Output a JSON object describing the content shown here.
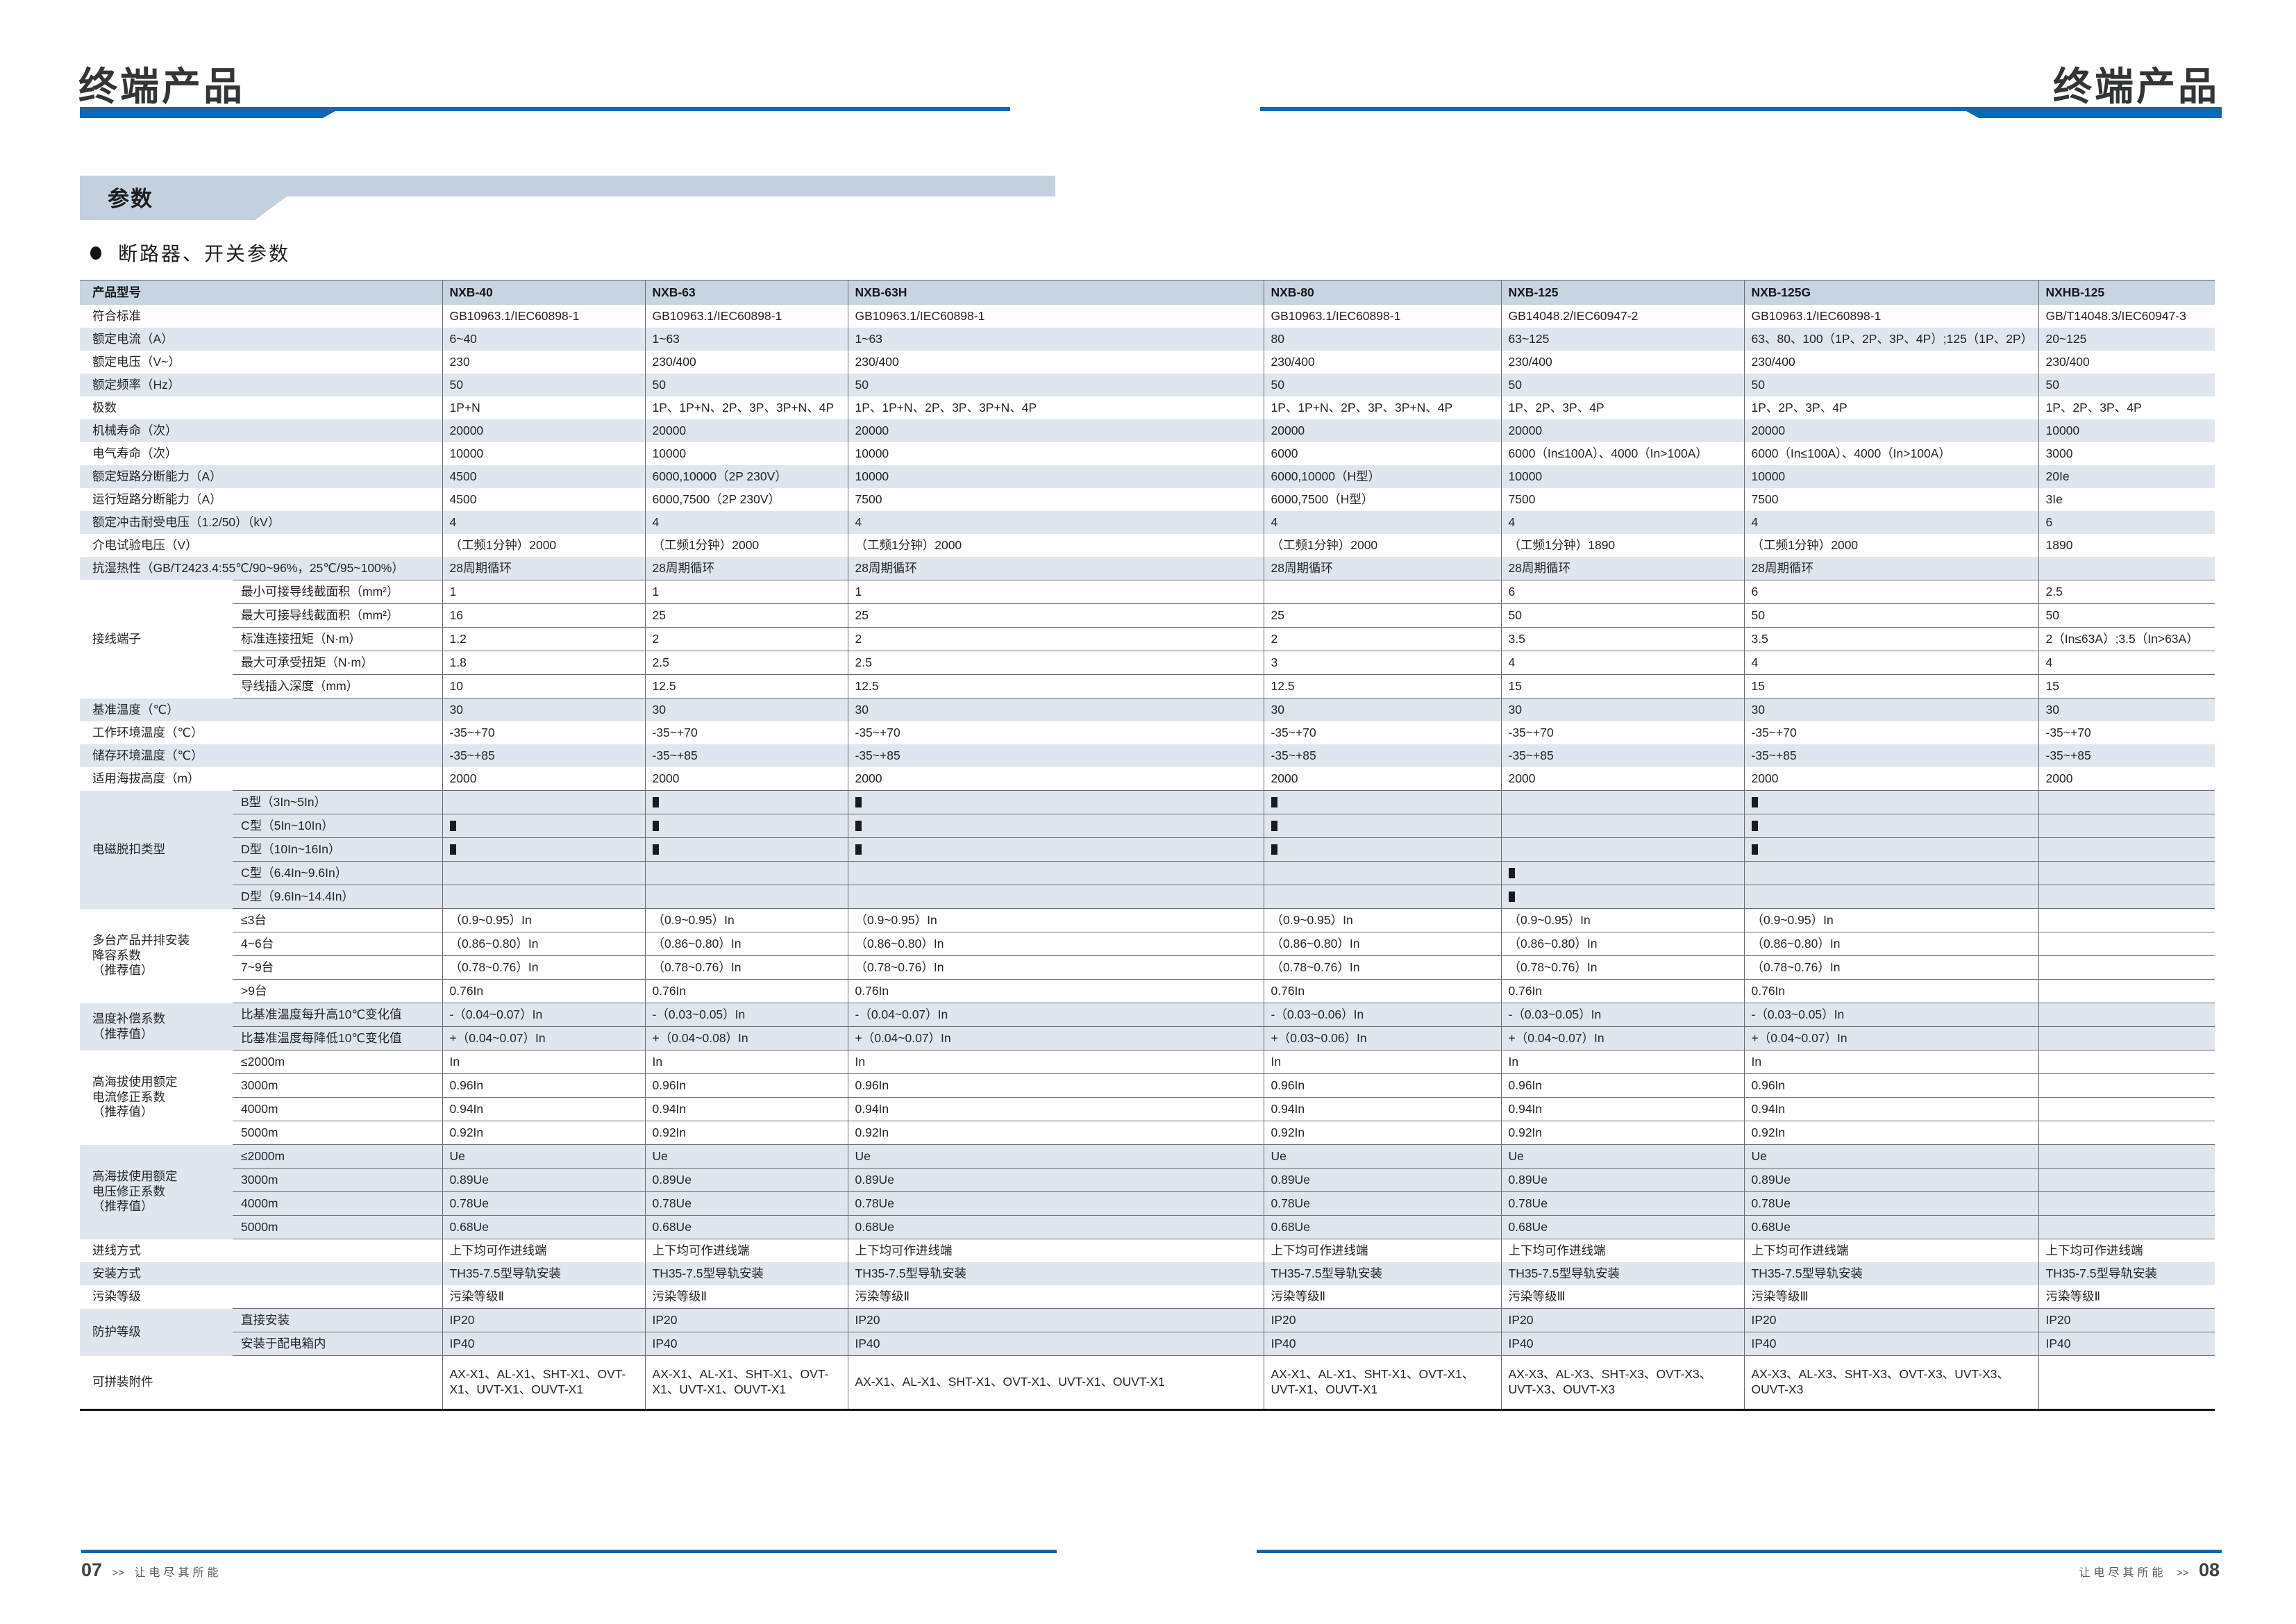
{
  "page": {
    "left_header_title": "终端产品",
    "right_header_title": "终端产品",
    "banner_label": "参数",
    "section_title": "断路器、开关参数",
    "footer_left": {
      "page_no": "07",
      "arrows": ">>",
      "slogan": "让电尽其所能"
    },
    "footer_right": {
      "page_no": "08",
      "arrows": ">>",
      "slogan": "让电尽其所能"
    },
    "colors": {
      "accent_blue": "#0e68b1",
      "banner_bg": "#c3d0de",
      "table_header_bg": "#c7d4e2",
      "shaded_row_bg": "#dfe6ee"
    }
  },
  "table": {
    "header": [
      "产品型号",
      "NXB-40",
      "NXB-63",
      "NXB-63H",
      "NXB-80",
      "NXB-125",
      "NXB-125G",
      "NXHB-125"
    ],
    "rows": [
      {
        "label": "符合标准",
        "shade": "w",
        "values": [
          "GB10963.1/IEC60898-1",
          "GB10963.1/IEC60898-1",
          "GB10963.1/IEC60898-1",
          "GB10963.1/IEC60898-1",
          "GB14048.2/IEC60947-2",
          "GB10963.1/IEC60898-1",
          "GB/T14048.3/IEC60947-3"
        ]
      },
      {
        "label": "额定电流（A）",
        "shade": "g",
        "values": [
          "6~40",
          "1~63",
          "1~63",
          "80",
          "63~125",
          "63、80、100（1P、2P、3P、4P）;125（1P、2P）",
          "20~125"
        ]
      },
      {
        "label": "额定电压（V~）",
        "shade": "w",
        "values": [
          "230",
          "230/400",
          "230/400",
          "230/400",
          "230/400",
          "230/400",
          "230/400"
        ]
      },
      {
        "label": "额定频率（Hz）",
        "shade": "g",
        "values": [
          "50",
          "50",
          "50",
          "50",
          "50",
          "50",
          "50"
        ]
      },
      {
        "label": "极数",
        "shade": "w",
        "values": [
          "1P+N",
          "1P、1P+N、2P、3P、3P+N、4P",
          "1P、1P+N、2P、3P、3P+N、4P",
          "1P、1P+N、2P、3P、3P+N、4P",
          "1P、2P、3P、4P",
          "1P、2P、3P、4P",
          "1P、2P、3P、4P"
        ]
      },
      {
        "label": "机械寿命（次）",
        "shade": "g",
        "values": [
          "20000",
          "20000",
          "20000",
          "20000",
          "20000",
          "20000",
          "10000"
        ]
      },
      {
        "label": "电气寿命（次）",
        "shade": "w",
        "values": [
          "10000",
          "10000",
          "10000",
          "6000",
          "6000（In≤100A）、4000（In>100A）",
          "6000（In≤100A）、4000（In>100A）",
          "3000"
        ]
      },
      {
        "label": "额定短路分断能力（A）",
        "shade": "g",
        "values": [
          "4500",
          "6000,10000（2P 230V）",
          "10000",
          "6000,10000（H型）",
          "10000",
          "10000",
          "20Ie"
        ]
      },
      {
        "label": "运行短路分断能力（A）",
        "shade": "w",
        "values": [
          "4500",
          "6000,7500（2P 230V）",
          "7500",
          "6000,7500（H型）",
          "7500",
          "7500",
          "3Ie"
        ]
      },
      {
        "label": "额定冲击耐受电压（1.2/50）（kV）",
        "shade": "g",
        "values": [
          "4",
          "4",
          "4",
          "4",
          "4",
          "4",
          "6"
        ]
      },
      {
        "label": "介电试验电压（V）",
        "shade": "w",
        "values": [
          "（工频1分钟）2000",
          "（工频1分钟）2000",
          "（工频1分钟）2000",
          "（工频1分钟）2000",
          "（工频1分钟）1890",
          "（工频1分钟）2000",
          "1890"
        ]
      },
      {
        "label": "抗湿热性（GB/T2423.4:55℃/90~96%，25℃/95~100%）",
        "shade": "g",
        "values": [
          "28周期循环",
          "28周期循环",
          "28周期循环",
          "28周期循环",
          "28周期循环",
          "28周期循环",
          ""
        ]
      },
      {
        "group": "接线端子",
        "span": 5,
        "sub": "最小可接导线截面积（mm²）",
        "shade": "w",
        "sep": true,
        "values": [
          "1",
          "1",
          "1",
          "",
          "6",
          "6",
          "2.5"
        ]
      },
      {
        "sub": "最大可接导线截面积（mm²）",
        "shade": "w",
        "sep": true,
        "values": [
          "16",
          "25",
          "25",
          "25",
          "50",
          "50",
          "50"
        ]
      },
      {
        "sub": "标准连接扭矩（N·m）",
        "shade": "w",
        "sep": true,
        "values": [
          "1.2",
          "2",
          "2",
          "2",
          "3.5",
          "3.5",
          "2（In≤63A）;3.5（In>63A）"
        ]
      },
      {
        "sub": "最大可承受扭矩（N·m）",
        "shade": "w",
        "sep": true,
        "values": [
          "1.8",
          "2.5",
          "2.5",
          "3",
          "4",
          "4",
          "4"
        ]
      },
      {
        "sub": "导线插入深度（mm）",
        "shade": "w",
        "sep": true,
        "sepb": true,
        "values": [
          "10",
          "12.5",
          "12.5",
          "12.5",
          "15",
          "15",
          "15"
        ]
      },
      {
        "label": "基准温度（℃）",
        "shade": "g",
        "values": [
          "30",
          "30",
          "30",
          "30",
          "30",
          "30",
          "30"
        ]
      },
      {
        "label": "工作环境温度（℃）",
        "shade": "w",
        "values": [
          "-35~+70",
          "-35~+70",
          "-35~+70",
          "-35~+70",
          "-35~+70",
          "-35~+70",
          "-35~+70"
        ]
      },
      {
        "label": "储存环境温度（℃）",
        "shade": "g",
        "values": [
          "-35~+85",
          "-35~+85",
          "-35~+85",
          "-35~+85",
          "-35~+85",
          "-35~+85",
          "-35~+85"
        ]
      },
      {
        "label": "适用海拔高度（m）",
        "shade": "w",
        "values": [
          "2000",
          "2000",
          "2000",
          "2000",
          "2000",
          "2000",
          "2000"
        ]
      },
      {
        "group": "电磁脱扣类型",
        "span": 5,
        "sub": "B型（3In~5In）",
        "shade": "g",
        "sep": true,
        "values": [
          "",
          "■",
          "■",
          "■",
          "",
          "■",
          ""
        ]
      },
      {
        "sub": "C型（5In~10In）",
        "shade": "g",
        "sep": true,
        "values": [
          "■",
          "■",
          "■",
          "■",
          "",
          "■",
          ""
        ]
      },
      {
        "sub": "D型（10In~16In）",
        "shade": "g",
        "sep": true,
        "values": [
          "■",
          "■",
          "■",
          "■",
          "",
          "■",
          ""
        ]
      },
      {
        "sub": "C型（6.4In~9.6In）",
        "shade": "g",
        "sep": true,
        "values": [
          "",
          "",
          "",
          "",
          "■",
          "",
          ""
        ]
      },
      {
        "sub": "D型（9.6In~14.4In）",
        "shade": "g",
        "sep": true,
        "sepb": true,
        "values": [
          "",
          "",
          "",
          "",
          "■",
          "",
          ""
        ]
      },
      {
        "group": "多台产品并排安装\n降容系数\n（推荐值）",
        "span": 4,
        "sub": "≤3台",
        "shade": "w",
        "sep": true,
        "values": [
          "（0.9~0.95）In",
          "（0.9~0.95）In",
          "（0.9~0.95）In",
          "（0.9~0.95）In",
          "（0.9~0.95）In",
          "（0.9~0.95）In",
          ""
        ]
      },
      {
        "sub": "4~6台",
        "shade": "w",
        "sep": true,
        "values": [
          "（0.86~0.80）In",
          "（0.86~0.80）In",
          "（0.86~0.80）In",
          "（0.86~0.80）In",
          "（0.86~0.80）In",
          "（0.86~0.80）In",
          ""
        ]
      },
      {
        "sub": "7~9台",
        "shade": "w",
        "sep": true,
        "values": [
          "（0.78~0.76）In",
          "（0.78~0.76）In",
          "（0.78~0.76）In",
          "（0.78~0.76）In",
          "（0.78~0.76）In",
          "（0.78~0.76）In",
          ""
        ]
      },
      {
        "sub": ">9台",
        "shade": "w",
        "sep": true,
        "sepb": true,
        "values": [
          "0.76In",
          "0.76In",
          "0.76In",
          "0.76In",
          "0.76In",
          "0.76In",
          ""
        ]
      },
      {
        "group": "温度补偿系数\n（推荐值）",
        "span": 2,
        "sub": "比基准温度每升高10℃变化值",
        "shade": "g",
        "sep": true,
        "values": [
          "-（0.04~0.07）In",
          "-（0.03~0.05）In",
          "-（0.04~0.07）In",
          "-（0.03~0.06）In",
          "-（0.03~0.05）In",
          "-（0.03~0.05）In",
          ""
        ]
      },
      {
        "sub": "比基准温度每降低10℃变化值",
        "shade": "g",
        "sep": true,
        "sepb": true,
        "values": [
          "+（0.04~0.07）In",
          "+（0.04~0.08）In",
          "+（0.04~0.07）In",
          "+（0.03~0.06）In",
          "+（0.04~0.07）In",
          "+（0.04~0.07）In",
          ""
        ]
      },
      {
        "group": "高海拔使用额定\n电流修正系数\n（推荐值）",
        "span": 4,
        "sub": "≤2000m",
        "shade": "w",
        "sep": true,
        "values": [
          "In",
          "In",
          "In",
          "In",
          "In",
          "In",
          ""
        ]
      },
      {
        "sub": "3000m",
        "shade": "w",
        "sep": true,
        "values": [
          "0.96In",
          "0.96In",
          "0.96In",
          "0.96In",
          "0.96In",
          "0.96In",
          ""
        ]
      },
      {
        "sub": "4000m",
        "shade": "w",
        "sep": true,
        "values": [
          "0.94In",
          "0.94In",
          "0.94In",
          "0.94In",
          "0.94In",
          "0.94In",
          ""
        ]
      },
      {
        "sub": "5000m",
        "shade": "w",
        "sep": true,
        "sepb": true,
        "values": [
          "0.92In",
          "0.92In",
          "0.92In",
          "0.92In",
          "0.92In",
          "0.92In",
          ""
        ]
      },
      {
        "group": "高海拔使用额定\n电压修正系数\n（推荐值）",
        "span": 4,
        "sub": "≤2000m",
        "shade": "g",
        "sep": true,
        "values": [
          "Ue",
          "Ue",
          "Ue",
          "Ue",
          "Ue",
          "Ue",
          ""
        ]
      },
      {
        "sub": "3000m",
        "shade": "g",
        "sep": true,
        "values": [
          "0.89Ue",
          "0.89Ue",
          "0.89Ue",
          "0.89Ue",
          "0.89Ue",
          "0.89Ue",
          ""
        ]
      },
      {
        "sub": "4000m",
        "shade": "g",
        "sep": true,
        "values": [
          "0.78Ue",
          "0.78Ue",
          "0.78Ue",
          "0.78Ue",
          "0.78Ue",
          "0.78Ue",
          ""
        ]
      },
      {
        "sub": "5000m",
        "shade": "g",
        "sep": true,
        "sepb": true,
        "values": [
          "0.68Ue",
          "0.68Ue",
          "0.68Ue",
          "0.68Ue",
          "0.68Ue",
          "0.68Ue",
          ""
        ]
      },
      {
        "label": "进线方式",
        "shade": "w",
        "values": [
          "上下均可作进线端",
          "上下均可作进线端",
          "上下均可作进线端",
          "上下均可作进线端",
          "上下均可作进线端",
          "上下均可作进线端",
          "上下均可作进线端"
        ]
      },
      {
        "label": "安装方式",
        "shade": "g",
        "values": [
          "TH35-7.5型导轨安装",
          "TH35-7.5型导轨安装",
          "TH35-7.5型导轨安装",
          "TH35-7.5型导轨安装",
          "TH35-7.5型导轨安装",
          "TH35-7.5型导轨安装",
          "TH35-7.5型导轨安装"
        ]
      },
      {
        "label": "污染等级",
        "shade": "w",
        "values": [
          "污染等级Ⅱ",
          "污染等级Ⅱ",
          "污染等级Ⅱ",
          "污染等级Ⅱ",
          "污染等级Ⅲ",
          "污染等级Ⅲ",
          "污染等级Ⅱ"
        ]
      },
      {
        "group": "防护等级",
        "span": 2,
        "sub": "直接安装",
        "shade": "g",
        "sep": true,
        "values": [
          "IP20",
          "IP20",
          "IP20",
          "IP20",
          "IP20",
          "IP20",
          "IP20"
        ]
      },
      {
        "sub": "安装于配电箱内",
        "shade": "g",
        "sep": true,
        "sepb": true,
        "values": [
          "IP40",
          "IP40",
          "IP40",
          "IP40",
          "IP40",
          "IP40",
          "IP40"
        ]
      },
      {
        "label": "可拼装附件",
        "shade": "w",
        "tall": true,
        "values": [
          "AX-X1、AL-X1、SHT-X1、OVT-X1、UVT-X1、OUVT-X1",
          "AX-X1、AL-X1、SHT-X1、OVT-X1、UVT-X1、OUVT-X1",
          "AX-X1、AL-X1、SHT-X1、OVT-X1、UVT-X1、OUVT-X1",
          "AX-X1、AL-X1、SHT-X1、OVT-X1、UVT-X1、OUVT-X1",
          "AX-X3、AL-X3、SHT-X3、OVT-X3、UVT-X3、OUVT-X3",
          "AX-X3、AL-X3、SHT-X3、OVT-X3、UVT-X3、OUVT-X3",
          ""
        ]
      }
    ]
  }
}
